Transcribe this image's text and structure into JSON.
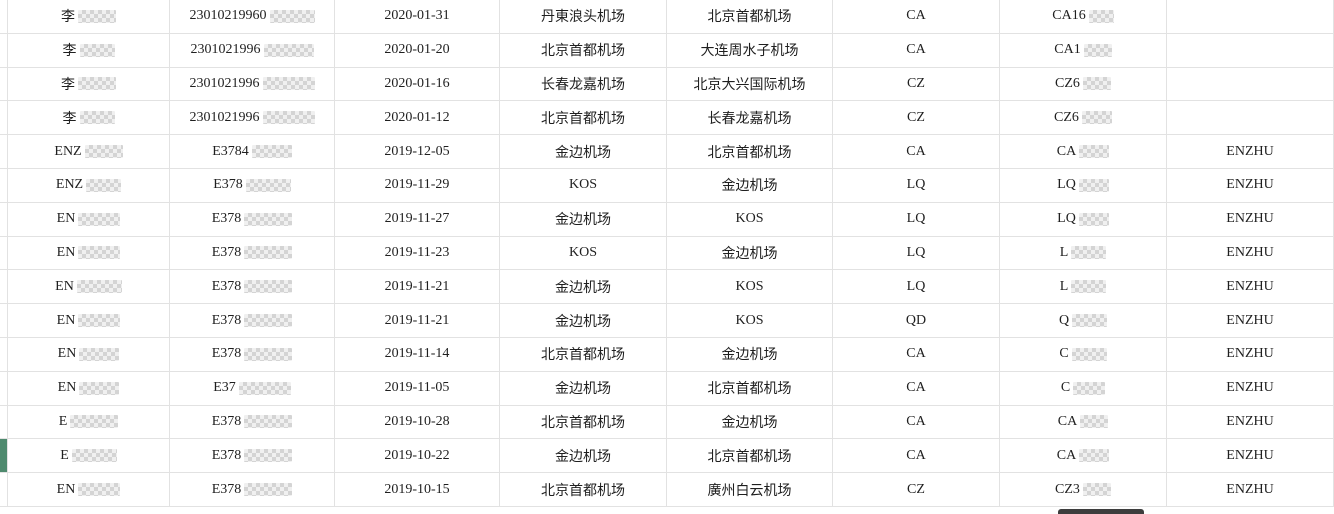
{
  "table": {
    "description_fields": [
      "name",
      "id_number",
      "date",
      "departure_airport",
      "arrival_airport",
      "airline_code",
      "flight_number",
      "owner"
    ],
    "selected_row_index": 13,
    "rows": [
      {
        "name": "李",
        "name_blur": 38,
        "id": "23010219960",
        "id_blur": 45,
        "date": "2020-01-31",
        "departure": "丹東浪头机场",
        "arrival": "北京首都机场",
        "airline": "CA",
        "flight": "CA16",
        "flight_blur": 25,
        "owner": ""
      },
      {
        "name": "李",
        "name_blur": 35,
        "id": "2301021996",
        "id_blur": 50,
        "date": "2020-01-20",
        "departure": "北京首都机场",
        "arrival": "大连周水子机场",
        "airline": "CA",
        "flight": "CA1",
        "flight_blur": 28,
        "owner": ""
      },
      {
        "name": "李",
        "name_blur": 38,
        "id": "2301021996",
        "id_blur": 52,
        "date": "2020-01-16",
        "departure": "长春龙嘉机场",
        "arrival": "北京大兴国际机场",
        "airline": "CZ",
        "flight": "CZ6",
        "flight_blur": 28,
        "owner": ""
      },
      {
        "name": "李",
        "name_blur": 35,
        "id": "2301021996",
        "id_blur": 52,
        "date": "2020-01-12",
        "departure": "北京首都机场",
        "arrival": "长春龙嘉机场",
        "airline": "CZ",
        "flight": "CZ6",
        "flight_blur": 30,
        "owner": ""
      },
      {
        "name": "ENZ",
        "name_blur": 38,
        "id": "E3784",
        "id_blur": 40,
        "date": "2019-12-05",
        "departure": "金边机场",
        "arrival": "北京首都机场",
        "airline": "CA",
        "flight": "CA",
        "flight_blur": 30,
        "owner": "ENZHU"
      },
      {
        "name": "ENZ",
        "name_blur": 35,
        "id": "E378",
        "id_blur": 45,
        "date": "2019-11-29",
        "departure": "KOS",
        "arrival": "金边机场",
        "airline": "LQ",
        "flight": "LQ",
        "flight_blur": 30,
        "owner": "ENZHU"
      },
      {
        "name": "EN",
        "name_blur": 42,
        "id": "E378",
        "id_blur": 48,
        "date": "2019-11-27",
        "departure": "金边机场",
        "arrival": "KOS",
        "airline": "LQ",
        "flight": "LQ",
        "flight_blur": 30,
        "owner": "ENZHU"
      },
      {
        "name": "EN",
        "name_blur": 42,
        "id": "E378",
        "id_blur": 48,
        "date": "2019-11-23",
        "departure": "KOS",
        "arrival": "金边机场",
        "airline": "LQ",
        "flight": "L",
        "flight_blur": 35,
        "owner": "ENZHU"
      },
      {
        "name": "EN",
        "name_blur": 45,
        "id": "E378",
        "id_blur": 48,
        "date": "2019-11-21",
        "departure": "金边机场",
        "arrival": "KOS",
        "airline": "LQ",
        "flight": "L",
        "flight_blur": 35,
        "owner": "ENZHU"
      },
      {
        "name": "EN",
        "name_blur": 42,
        "id": "E378",
        "id_blur": 48,
        "date": "2019-11-21",
        "departure": "金边机场",
        "arrival": "KOS",
        "airline": "QD",
        "flight": "Q",
        "flight_blur": 35,
        "owner": "ENZHU"
      },
      {
        "name": "EN",
        "name_blur": 40,
        "id": "E378",
        "id_blur": 48,
        "date": "2019-11-14",
        "departure": "北京首都机场",
        "arrival": "金边机场",
        "airline": "CA",
        "flight": "C",
        "flight_blur": 35,
        "owner": "ENZHU"
      },
      {
        "name": "EN",
        "name_blur": 40,
        "id": "E37",
        "id_blur": 52,
        "date": "2019-11-05",
        "departure": "金边机场",
        "arrival": "北京首都机场",
        "airline": "CA",
        "flight": "C",
        "flight_blur": 32,
        "owner": "ENZHU"
      },
      {
        "name": "E",
        "name_blur": 48,
        "id": "E378",
        "id_blur": 48,
        "date": "2019-10-28",
        "departure": "北京首都机场",
        "arrival": "金边机场",
        "airline": "CA",
        "flight": "CA",
        "flight_blur": 28,
        "owner": "ENZHU"
      },
      {
        "name": "E",
        "name_blur": 45,
        "id": "E378",
        "id_blur": 48,
        "date": "2019-10-22",
        "departure": "金边机场",
        "arrival": "北京首都机场",
        "airline": "CA",
        "flight": "CA",
        "flight_blur": 30,
        "owner": "ENZHU"
      },
      {
        "name": "EN",
        "name_blur": 42,
        "id": "E378",
        "id_blur": 48,
        "date": "2019-10-15",
        "departure": "北京首都机场",
        "arrival": "廣州白云机场",
        "airline": "CZ",
        "flight": "CZ3",
        "flight_blur": 28,
        "owner": "ENZHU"
      }
    ]
  },
  "colors": {
    "row_indicator_green": "#4e8a6e",
    "grid_border": "#e2e2e2",
    "scrollbar_thumb": "#3d3d3d",
    "text": "#1f1f1f"
  }
}
